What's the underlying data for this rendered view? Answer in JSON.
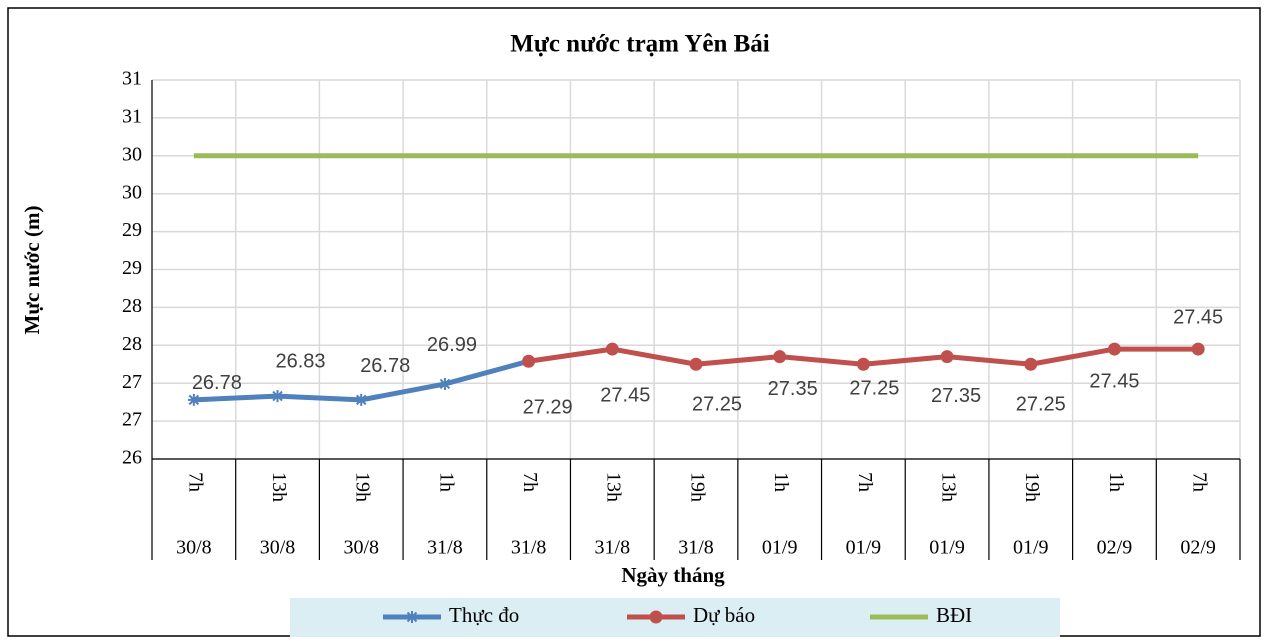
{
  "chart_data": {
    "type": "line",
    "title": "Mực nước trạm Yên Bái",
    "y_label": "Mực nước (m)",
    "x_label": "Ngày tháng",
    "categories": [
      "7h",
      "13h",
      "19h",
      "1h",
      "7h",
      "13h",
      "19h",
      "1h",
      "7h",
      "13h",
      "19h",
      "1h",
      "7h"
    ],
    "category_groups": [
      "30/8",
      "30/8",
      "30/8",
      "31/8",
      "31/8",
      "31/8",
      "31/8",
      "01/9",
      "01/9",
      "01/9",
      "01/9",
      "02/9",
      "02/9"
    ],
    "ylim": [
      26,
      31
    ],
    "yticks": [
      26,
      {
        "value": 26.5,
        "label": "27"
      },
      27,
      {
        "value": 27.5,
        "label": "28"
      },
      28,
      {
        "value": 28.5,
        "label": "29"
      },
      29,
      {
        "value": 29.5,
        "label": "30"
      },
      30,
      {
        "value": 30.5,
        "label": "31"
      },
      31
    ],
    "grid": true,
    "legend": "bottom",
    "series": [
      {
        "name": "Thực đo",
        "color": "#4f81bd",
        "marker": "star",
        "data_labels": true,
        "values": [
          26.78,
          26.83,
          26.78,
          26.99,
          27.29,
          null,
          null,
          null,
          null,
          null,
          null,
          null,
          null
        ]
      },
      {
        "name": "Dự báo",
        "color": "#c0504d",
        "marker": "circle",
        "data_labels": true,
        "values": [
          null,
          null,
          null,
          null,
          27.29,
          27.45,
          27.25,
          27.35,
          27.25,
          27.35,
          27.25,
          27.45,
          27.45
        ]
      },
      {
        "name": "BĐI",
        "color": "#9bbb59",
        "marker": "none",
        "data_labels": false,
        "values": [
          30,
          30,
          30,
          30,
          30,
          30,
          30,
          30,
          30,
          30,
          30,
          30,
          30
        ]
      }
    ]
  }
}
